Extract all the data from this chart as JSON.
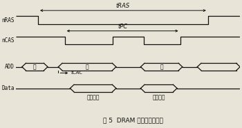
{
  "title": "图 5  DRAM 主要读写互时序",
  "signals": [
    "nRAS",
    "nCAS",
    "ADD",
    "Data"
  ],
  "background_color": "#e8e4d8",
  "line_color": "#111111",
  "tRAS_label": "tRAS",
  "tPC_label": "tPC",
  "tCAC_label": "tCAC",
  "data_out1": "数据输出",
  "data_out2": "数据输出",
  "addr_hang": "行",
  "addr_lie1": "列",
  "addr_lie2": "列",
  "fig_width": 3.5,
  "fig_height": 1.85,
  "dpi": 100,
  "xlim": [
    0,
    10.5
  ],
  "ylim": [
    0.0,
    6.0
  ],
  "y_nRAS": 5.0,
  "y_nCAS": 4.0,
  "y_ADD": 2.9,
  "y_Data": 1.85,
  "sig_height": 0.38,
  "bus_height": 0.36
}
